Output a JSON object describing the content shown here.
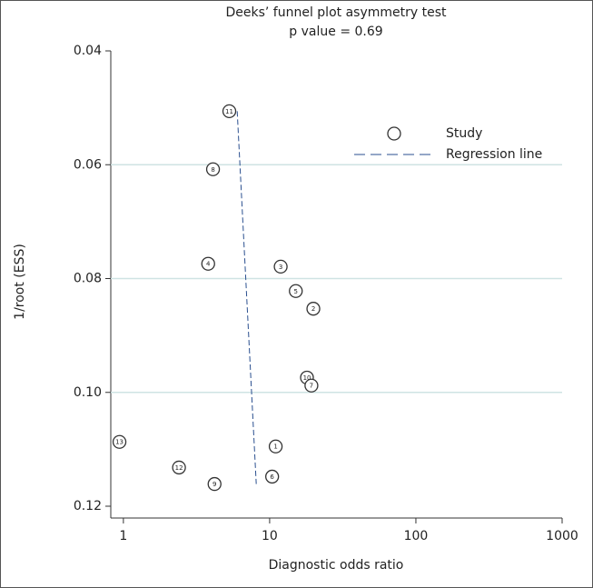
{
  "chart_data": {
    "type": "scatter",
    "title": "Deeks’ funnel plot asymmetry test",
    "subtitle": "p value = 0.69",
    "x_label": "Diagnostic odds ratio",
    "y_label": "1/root (ESS)",
    "x_scale": "log",
    "y_inverted": true,
    "grid": true,
    "legend_position": "top-right",
    "xlim": [
      0.82,
      1000
    ],
    "xticks": [
      1,
      10,
      100,
      1000
    ],
    "ylim": [
      0.04,
      0.12
    ],
    "yticks": [
      0.04,
      0.06,
      0.08,
      {
        "value": 0.1,
        "label": "0.10"
      },
      0.12
    ],
    "series": [
      {
        "name": "Study",
        "color": "#333333",
        "labels": [
          "11",
          "8",
          "4",
          "3",
          "5",
          "2",
          "10",
          "7",
          "13",
          "1",
          "12",
          "6",
          "9"
        ],
        "x": [
          5.3,
          4.1,
          3.8,
          11.9,
          15.1,
          19.9,
          18,
          19.3,
          0.94,
          11,
          2.4,
          10.4,
          4.2
        ],
        "y": [
          0.0506,
          0.0608,
          0.0774,
          0.0779,
          0.0822,
          0.0853,
          0.0974,
          0.0988,
          0.1087,
          0.1095,
          0.1132,
          0.1148,
          0.1161
        ]
      },
      {
        "name": "Regression line",
        "color": "#2a4f8f",
        "line": true,
        "x": [
          6.0,
          8.1
        ],
        "y": [
          0.0506,
          0.1161
        ]
      }
    ]
  }
}
